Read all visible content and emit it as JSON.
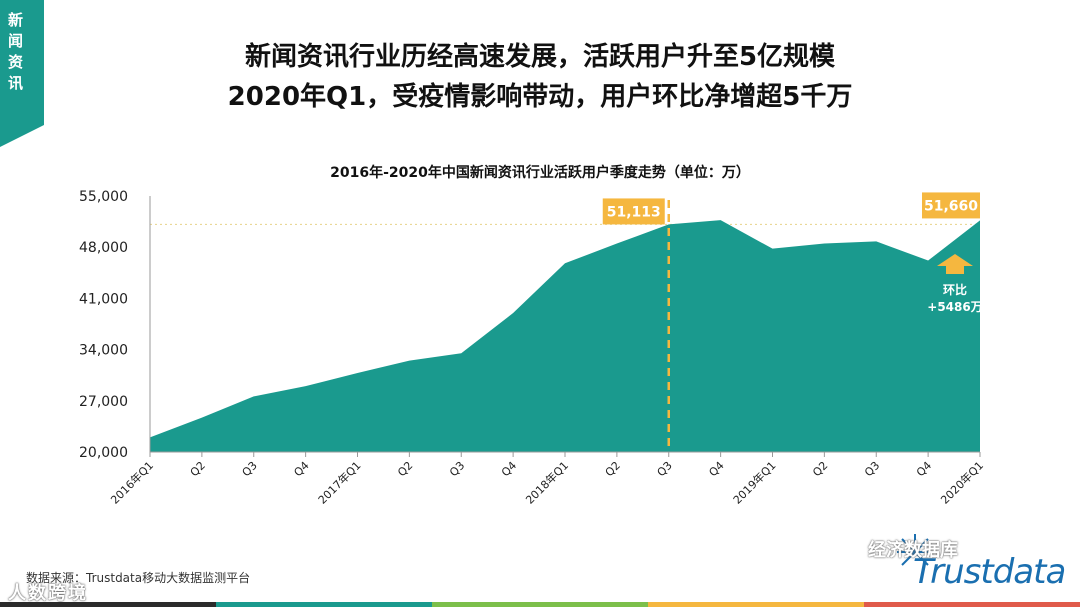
{
  "side_tab": {
    "label": "新闻资讯"
  },
  "headline": {
    "line1": "新闻资讯行业历经高速发展，活跃用户升至5亿规模",
    "line2": "2020年Q1，受疫情影响带动，用户环比净增超5千万"
  },
  "footer": {
    "source": "数据来源：Trustdata移动大数据监测平台",
    "watermark_left": "人数跨境",
    "watermark_right": "经济数据库",
    "brand": "Trustdata"
  },
  "colors": {
    "area": "#1a9a8e",
    "accent": "#f5b73f",
    "teal": "#1a9a8e",
    "bar_segments": [
      "#2b2b2b",
      "#1a9a8e",
      "#7cbf4a",
      "#f5b73f",
      "#e05a4a"
    ]
  },
  "chart_data": {
    "type": "area",
    "title": "2016年-2020年中国新闻资讯行业活跃用户季度走势（单位：万）",
    "categories": [
      "2016年Q1",
      "Q2",
      "Q3",
      "Q4",
      "2017年Q1",
      "Q2",
      "Q3",
      "Q4",
      "2018年Q1",
      "Q2",
      "Q3",
      "Q4",
      "2019年Q1",
      "Q2",
      "Q3",
      "Q4",
      "2020年Q1"
    ],
    "values": [
      22000,
      24700,
      27600,
      29000,
      30800,
      32500,
      33500,
      39000,
      45800,
      48500,
      51113,
      51700,
      47800,
      48500,
      48800,
      46174,
      51660
    ],
    "ylim": [
      20000,
      55000
    ],
    "yticks": [
      "55,000",
      "48,000",
      "41,000",
      "34,000",
      "27,000",
      "20,000"
    ],
    "ytick_values": [
      55000,
      48000,
      41000,
      34000,
      27000,
      20000
    ],
    "grid": false,
    "annotations": {
      "q3_2018_label": "51,113",
      "q1_2020_label": "51,660",
      "change_label_line1": "环比",
      "change_label_line2": "+5486万"
    }
  }
}
